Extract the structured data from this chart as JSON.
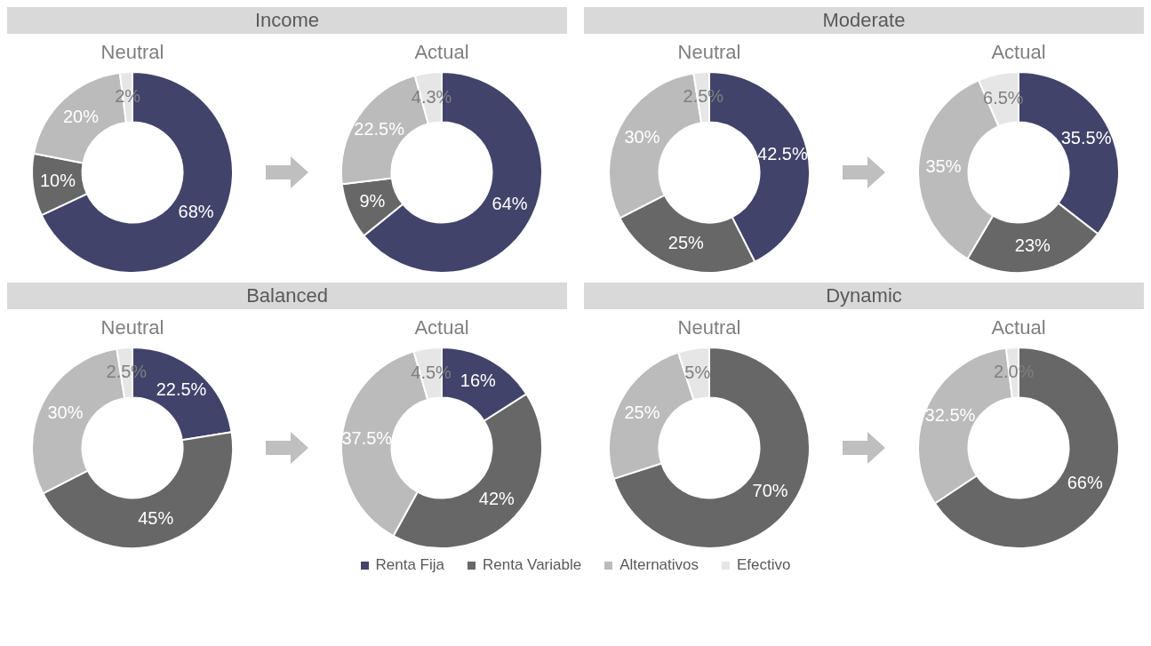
{
  "chart_data": [
    {
      "type": "donut",
      "title": "Income",
      "categories": [
        "Renta Fija",
        "Renta Variable",
        "Alternativos",
        "Efectivo"
      ],
      "colors": [
        "#41436a",
        "#676767",
        "#bbbbbb",
        "#e6e6e6"
      ],
      "legend": "bottom",
      "series": [
        {
          "name": "Neutral",
          "values": [
            68,
            10,
            20,
            2
          ],
          "value_labels": [
            "68%",
            "10%",
            "20%",
            "2%"
          ]
        },
        {
          "name": "Actual",
          "values": [
            64,
            9,
            22.5,
            4.3
          ],
          "value_labels": [
            "64%",
            "9%",
            "22.5%",
            "4.3%"
          ]
        }
      ]
    },
    {
      "type": "donut",
      "title": "Moderate",
      "categories": [
        null,
        null,
        null,
        null
      ],
      "colors": [
        "#41436a",
        "#676767",
        "#bbbbbb",
        "#e6e6e6"
      ],
      "series": [
        {
          "name": "Neutral",
          "values": [
            42.5,
            25,
            30,
            2.5
          ],
          "value_labels": [
            "42.5%",
            "25%",
            "30%",
            "2.5%"
          ]
        },
        {
          "name": "Actual",
          "values": [
            35.5,
            23,
            35,
            6.5
          ],
          "value_labels": [
            "35.5%",
            "23%",
            "35%",
            "6.5%"
          ]
        }
      ]
    },
    {
      "type": "donut",
      "title": "Balanced",
      "categories": [
        null,
        null,
        null,
        null
      ],
      "colors": [
        "#41436a",
        "#676767",
        "#bbbbbb",
        "#e6e6e6"
      ],
      "series": [
        {
          "name": "Neutral",
          "values": [
            22.5,
            45,
            30,
            2.5
          ],
          "value_labels": [
            "22.5%",
            "45%",
            "30%",
            "2.5%"
          ]
        },
        {
          "name": "Actual",
          "values": [
            16,
            42,
            37.5,
            4.5
          ],
          "value_labels": [
            "16%",
            "42%",
            "37.5%",
            "4.5%"
          ]
        }
      ]
    },
    {
      "type": "donut",
      "title": "Dynamic",
      "categories": [
        null,
        null,
        null,
        null
      ],
      "colors": [
        "#41436a",
        "#676767",
        "#bbbbbb",
        "#e6e6e6"
      ],
      "series": [
        {
          "name": "Neutral",
          "values": [
            null,
            70,
            25,
            5
          ],
          "value_labels": [
            null,
            "70%",
            "25%",
            "5%"
          ]
        },
        {
          "name": "Actual",
          "values": [
            null,
            66,
            32.5,
            2.0
          ],
          "value_labels": [
            null,
            "66%",
            "32.5%",
            "2.0%"
          ]
        }
      ]
    }
  ]
}
